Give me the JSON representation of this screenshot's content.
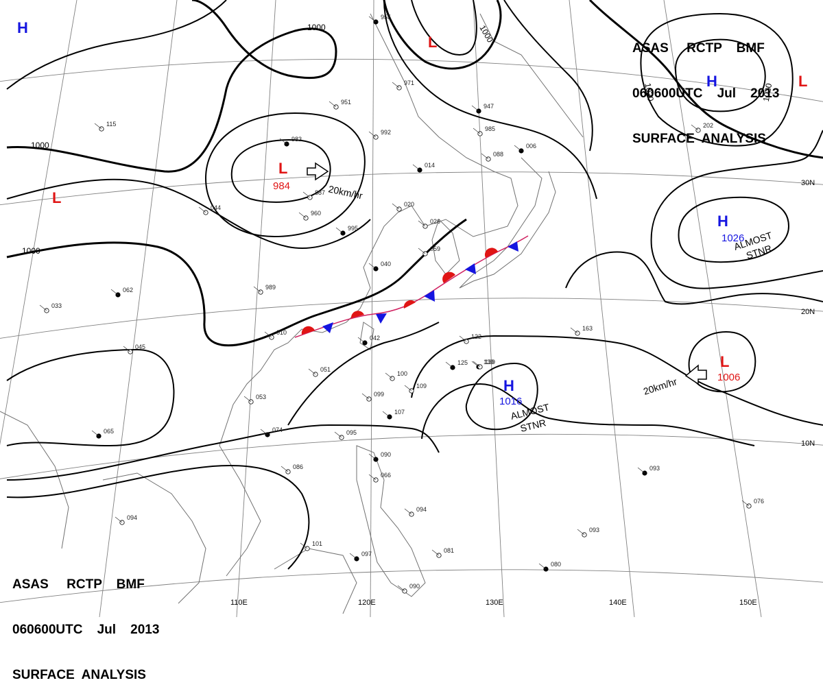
{
  "map_meta": {
    "title_line1": "ASAS     RCTP    BMF",
    "title_line2": "060600UTC    Jul    2013",
    "title_line3": "SURFACE  ANALYSIS"
  },
  "pressure_centers": [
    {
      "id": "H-nw-corner",
      "type": "H",
      "color": "#1515e0"
    },
    {
      "id": "L-north",
      "type": "L",
      "color": "#e01515"
    },
    {
      "id": "H-ne",
      "type": "H",
      "color": "#1515e0"
    },
    {
      "id": "L-ne-edge",
      "type": "L",
      "color": "#e01515"
    },
    {
      "id": "L-984",
      "type": "L",
      "color": "#e01515",
      "value": "984"
    },
    {
      "id": "L-west",
      "type": "L",
      "color": "#e01515"
    },
    {
      "id": "H-1026",
      "type": "H",
      "color": "#1515e0",
      "value": "1026"
    },
    {
      "id": "H-1016",
      "type": "H",
      "color": "#1515e0",
      "value": "1016"
    },
    {
      "id": "L-1006",
      "type": "L",
      "color": "#e01515",
      "value": "1006"
    }
  ],
  "isobar_labels": [
    "1000",
    "1000",
    "1000",
    "1000",
    "1020",
    "1020"
  ],
  "motion_labels": [
    "20km/hr",
    "20km/hr"
  ],
  "status_labels": {
    "h1026_line1": "ALMOST",
    "h1026_line2": "STNR",
    "h1016_line1": "ALMOST",
    "h1016_line2": "STNR"
  },
  "longitude_labels": [
    "110E",
    "120E",
    "130E",
    "140E",
    "150E"
  ],
  "latitude_labels": [
    "30N",
    "20N",
    "10N"
  ],
  "station_values": [
    "955",
    "971",
    "951",
    "947",
    "985",
    "992",
    "014",
    "020",
    "026",
    "040",
    "059",
    "088",
    "006",
    "202",
    "163",
    "139",
    "100",
    "099",
    "107",
    "109",
    "122",
    "125",
    "139",
    "095",
    "090",
    "066",
    "094",
    "093",
    "076",
    "093",
    "080",
    "081",
    "101",
    "097",
    "090",
    "086",
    "074",
    "053",
    "051",
    "042",
    "010",
    "989",
    "995",
    "960",
    "887",
    "983",
    "115",
    "045",
    "065",
    "094",
    "033",
    "062",
    "044"
  ],
  "colors": {
    "isobar": "#000000",
    "high": "#1515e0",
    "low": "#e01515",
    "front_warm": "#e01515",
    "front_cold": "#1515e0",
    "coast": "#606060",
    "grid": "#808080"
  }
}
